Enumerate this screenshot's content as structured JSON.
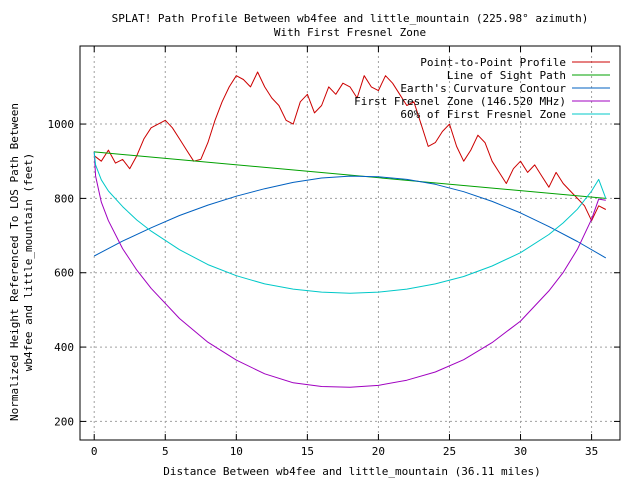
{
  "chart_data": {
    "type": "line",
    "title": "SPLAT! Path Profile Between wb4fee and little_mountain (225.98° azimuth)",
    "subtitle": "With First Fresnel Zone",
    "xlabel": "Distance Between wb4fee and little_mountain (36.11 miles)",
    "ylabel_line1": "Normalized Height Referenced To LOS Path Between",
    "ylabel_line2": "wb4fee and little_mountain (feet)",
    "xlim": [
      -1,
      37
    ],
    "ylim": [
      150,
      1210
    ],
    "x_ticks": [
      0,
      5,
      10,
      15,
      20,
      25,
      30,
      35
    ],
    "y_ticks": [
      200,
      400,
      600,
      800,
      1000
    ],
    "grid": true,
    "legend_position": "top-right",
    "path_length": 36.11,
    "series": [
      {
        "name": "Point-to-Point Profile",
        "color": "#cc0000",
        "x": [
          0,
          0.5,
          1,
          1.5,
          2,
          2.5,
          3,
          3.5,
          4,
          4.5,
          5,
          5.5,
          6,
          6.5,
          7,
          7.5,
          8,
          8.5,
          9,
          9.5,
          10,
          10.5,
          11,
          11.5,
          12,
          12.5,
          13,
          13.5,
          14,
          14.5,
          15,
          15.5,
          16,
          16.5,
          17,
          17.5,
          18,
          18.5,
          19,
          19.5,
          20,
          20.5,
          21,
          21.5,
          22,
          22.5,
          23,
          23.5,
          24,
          24.5,
          25,
          25.5,
          26,
          26.5,
          27,
          27.5,
          28,
          28.5,
          29,
          29.5,
          30,
          30.5,
          31,
          31.5,
          32,
          32.5,
          33,
          33.5,
          34,
          34.5,
          35,
          35.5,
          36
        ],
        "values": [
          915,
          900,
          930,
          895,
          905,
          880,
          915,
          960,
          990,
          1000,
          1010,
          990,
          960,
          930,
          900,
          905,
          950,
          1010,
          1060,
          1100,
          1130,
          1120,
          1100,
          1140,
          1100,
          1070,
          1050,
          1010,
          1000,
          1060,
          1080,
          1030,
          1050,
          1100,
          1080,
          1110,
          1100,
          1070,
          1130,
          1100,
          1090,
          1130,
          1110,
          1080,
          1050,
          1060,
          1000,
          940,
          950,
          980,
          1000,
          940,
          900,
          930,
          970,
          950,
          900,
          870,
          840,
          880,
          900,
          870,
          890,
          860,
          830,
          870,
          840,
          820,
          800,
          780,
          740,
          780,
          770
        ]
      },
      {
        "name": "Line of Sight Path",
        "color": "#00a000",
        "x": [
          0,
          36
        ],
        "values": [
          925,
          800
        ]
      },
      {
        "name": "Earth's Curvature Contour",
        "color": "#0060c0",
        "x": [
          0,
          2,
          4,
          6,
          8,
          10,
          12,
          14,
          16,
          18,
          20,
          22,
          24,
          26,
          28,
          30,
          32,
          34,
          36
        ],
        "values": [
          645,
          685,
          721,
          754,
          782,
          806,
          826,
          843,
          855,
          860,
          858,
          851,
          838,
          818,
          792,
          761,
          724,
          684,
          640
        ]
      },
      {
        "name": "First Fresnel Zone (146.520 MHz)",
        "color": "#a000c0",
        "x": [
          0,
          0.1,
          0.5,
          1,
          2,
          3,
          4,
          6,
          8,
          10,
          12,
          14,
          16,
          18,
          20,
          22,
          24,
          26,
          28,
          30,
          32,
          33,
          34,
          35,
          35.5,
          36
        ],
        "values": [
          925,
          860,
          790,
          740,
          665,
          607,
          558,
          477,
          413,
          365,
          328,
          304,
          294,
          292,
          297,
          311,
          333,
          366,
          412,
          470,
          551,
          601,
          663,
          744,
          798,
          795
        ]
      },
      {
        "name": "60% of First Fresnel Zone",
        "color": "#00c8c8",
        "x": [
          0,
          0.1,
          0.5,
          1,
          2,
          3,
          4,
          6,
          8,
          10,
          12,
          14,
          16,
          18,
          20,
          22,
          24,
          26,
          28,
          30,
          32,
          33,
          34,
          35,
          35.5,
          36
        ],
        "values": [
          925,
          890,
          850,
          820,
          778,
          742,
          712,
          662,
          622,
          592,
          570,
          556,
          548,
          545,
          548,
          556,
          570,
          590,
          618,
          654,
          703,
          734,
          771,
          820,
          851,
          800
        ]
      }
    ]
  }
}
